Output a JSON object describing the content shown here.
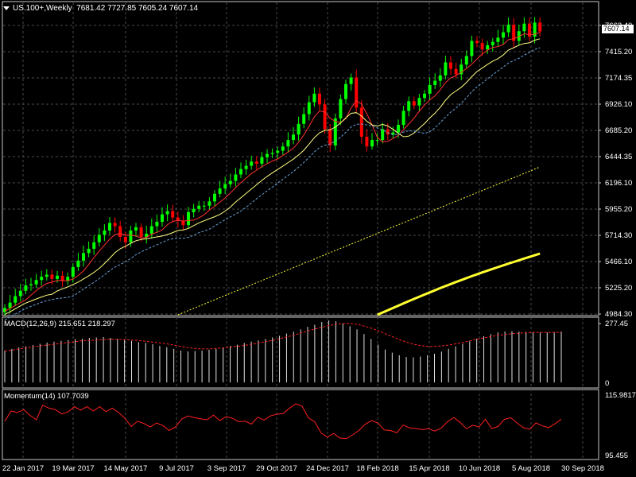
{
  "header": {
    "symbol": "US.100+,Weekly",
    "ohlc": "7681.42 7727.85 7605.24 7607.14",
    "last_price": "7607.14"
  },
  "colors": {
    "bull": "#00ff00",
    "bear": "#ff0000",
    "grid": "#4a4a4a",
    "ma_fast": "#ff3030",
    "ma_mid": "#ffff80",
    "ma_slow": "#6aa0d8",
    "ma_long": "#ffff30",
    "macd_signal": "#ff2020",
    "momentum": "#ff2020"
  },
  "chart_data": [
    {
      "type": "candlestick",
      "title": "US.100+,Weekly",
      "ylim": [
        4984.3,
        7800
      ],
      "ytick_labels": [
        "7663.40",
        "7415.20",
        "7174.35",
        "6926.10",
        "6685.20",
        "6444.35",
        "6196.10",
        "5955.20",
        "5714.30",
        "5466.10",
        "5225.20",
        "4984.30"
      ],
      "xtick_labels": [
        "22 Jan 2017",
        "19 Mar 2017",
        "14 May 2017",
        "9 Jul 2017",
        "3 Sep 2017",
        "29 Oct 2017",
        "24 Dec 2017",
        "18 Feb 2018",
        "15 Apr 2018",
        "10 Jun 2018",
        "5 Aug 2018",
        "30 Sep 2018"
      ],
      "closes": [
        5040,
        5090,
        5150,
        5200,
        5250,
        5260,
        5300,
        5330,
        5350,
        5310,
        5340,
        5290,
        5330,
        5420,
        5480,
        5550,
        5590,
        5650,
        5720,
        5760,
        5830,
        5800,
        5700,
        5650,
        5760,
        5790,
        5700,
        5730,
        5800,
        5840,
        5910,
        5940,
        5880,
        5850,
        5810,
        5930,
        5960,
        5990,
        5990,
        6030,
        6100,
        6150,
        6190,
        6220,
        6280,
        6330,
        6360,
        6400,
        6380,
        6440,
        6470,
        6480,
        6500,
        6540,
        6600,
        6650,
        6750,
        6840,
        6950,
        7030,
        6930,
        6700,
        6550,
        6800,
        6980,
        7120,
        7180,
        6900,
        6630,
        6540,
        6600,
        6600,
        6700,
        6650,
        6670,
        6740,
        6870,
        6960,
        6920,
        6990,
        7030,
        7110,
        7150,
        7200,
        7320,
        7260,
        7210,
        7300,
        7380,
        7520,
        7500,
        7440,
        7480,
        7510,
        7550,
        7600,
        7670,
        7520,
        7610,
        7680,
        7560,
        7690,
        7607.14
      ],
      "annotation": "7607.14"
    },
    {
      "type": "line",
      "title": "MACD(12,26,9) 215.651 218.297",
      "series_labels": [
        "MACD",
        "Signal"
      ],
      "ytick_labels": [
        "277.45",
        "0"
      ],
      "ylim": [
        0,
        277.45
      ],
      "histogram": [
        150,
        158,
        165,
        170,
        176,
        182,
        188,
        192,
        196,
        200,
        204,
        206,
        210,
        212,
        214,
        210,
        206,
        200,
        196,
        190,
        186,
        180,
        172,
        166,
        158,
        150,
        146,
        148,
        150,
        154,
        158,
        165,
        172,
        178,
        186,
        192,
        198,
        205,
        212,
        220,
        230,
        240,
        250,
        262,
        272,
        285,
        292,
        288,
        278,
        265,
        250,
        228,
        205,
        178,
        155,
        140,
        128,
        120,
        118,
        122,
        128,
        135,
        145,
        158,
        170,
        182,
        194,
        206,
        218,
        228,
        236,
        240,
        242,
        240,
        238,
        236,
        235,
        236,
        238,
        240
      ],
      "signal": [
        148,
        152,
        158,
        162,
        168,
        172,
        176,
        180,
        184,
        188,
        192,
        196,
        198,
        200,
        202,
        203,
        203,
        202,
        200,
        198,
        194,
        190,
        186,
        182,
        176,
        170,
        164,
        160,
        158,
        158,
        160,
        162,
        166,
        170,
        174,
        180,
        186,
        192,
        198,
        206,
        214,
        222,
        232,
        242,
        252,
        260,
        268,
        274,
        278,
        278,
        274,
        266,
        256,
        244,
        230,
        216,
        202,
        190,
        180,
        174,
        170,
        170,
        172,
        176,
        182,
        188,
        196,
        204,
        210,
        216,
        222,
        226,
        230,
        232,
        234,
        236,
        236,
        236,
        236,
        236
      ]
    },
    {
      "type": "line",
      "title": "Momentum(14) 107.7039",
      "series_labels": [
        "Momentum"
      ],
      "ytick_labels": [
        "115.9817",
        "95.455"
      ],
      "ylim": [
        95.455,
        115.9817
      ],
      "values": [
        107,
        110.5,
        110,
        111,
        109,
        107.5,
        112.5,
        111.5,
        111,
        109.5,
        110.2,
        112,
        110.8,
        112,
        110.5,
        112,
        110.3,
        111.5,
        110,
        108,
        105.2,
        107,
        106.2,
        105,
        106.4,
        105.5,
        103.8,
        105,
        107.8,
        108.8,
        108.2,
        107.8,
        107.5,
        109.1,
        107.2,
        108.6,
        108,
        106.8,
        107,
        106,
        108.4,
        107.4,
        108.8,
        109.4,
        109.6,
        111.4,
        113,
        112.2,
        108.2,
        106.8,
        103,
        101.5,
        102.8,
        101.2,
        101,
        102.3,
        103.8,
        106,
        107.2,
        106.4,
        104,
        103.8,
        103,
        105.7,
        104.7,
        104.5,
        104.1,
        104.4,
        103.6,
        104.6,
        106.8,
        108.3,
        106.6,
        104.4,
        105.6,
        105,
        107.7,
        104.5,
        105.2,
        107.6,
        108.2,
        106.4,
        104.8,
        104.2,
        106.4,
        105.4,
        104.8,
        106.1,
        107.7
      ]
    }
  ]
}
